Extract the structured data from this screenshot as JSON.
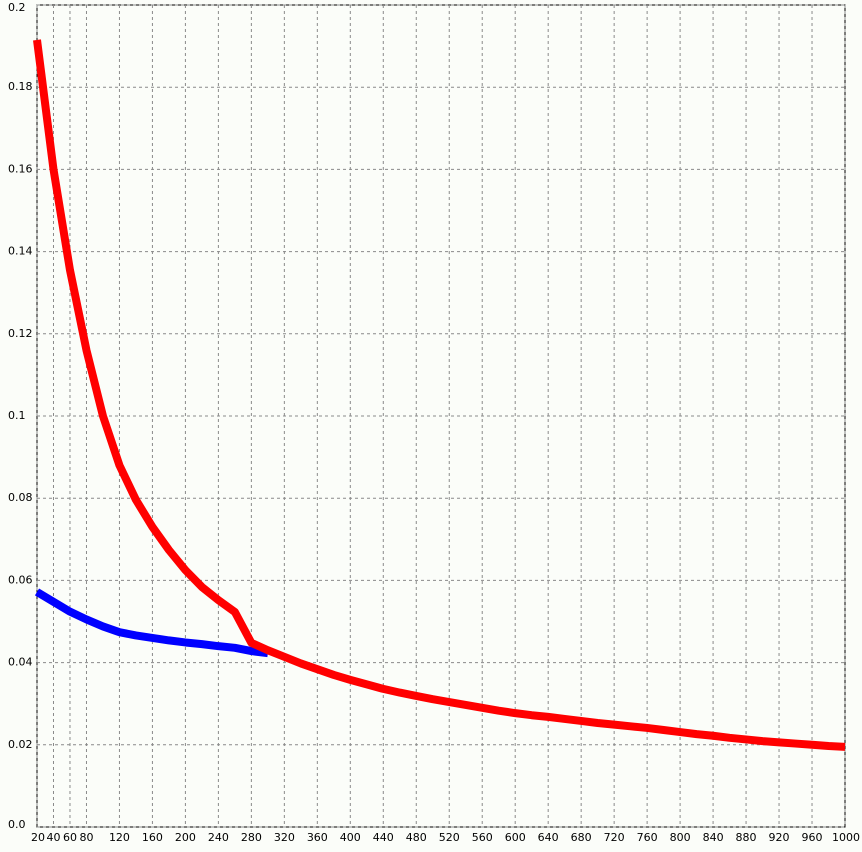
{
  "chart_data": {
    "type": "line",
    "x": [
      20,
      40,
      60,
      80,
      100,
      120,
      140,
      160,
      180,
      200,
      220,
      240,
      260,
      280,
      300,
      320,
      340,
      360,
      380,
      400,
      420,
      440,
      460,
      480,
      500,
      520,
      540,
      560,
      580,
      600,
      620,
      640,
      660,
      680,
      700,
      720,
      740,
      760,
      780,
      800,
      820,
      840,
      860,
      880,
      900,
      920,
      940,
      960,
      980,
      1000
    ],
    "series": [
      {
        "color": "#0000ff",
        "values": [
          0.0572,
          0.0548,
          0.0524,
          0.0505,
          0.0488,
          0.0474,
          0.0466,
          0.046,
          0.0454,
          0.0449,
          0.0445,
          0.044,
          0.0436,
          0.0428,
          0.0423,
          null,
          null,
          null,
          null,
          null,
          null,
          null,
          null,
          null,
          null,
          null,
          null,
          null,
          null,
          null,
          null,
          null,
          null,
          null,
          null,
          null,
          null,
          null,
          null,
          null,
          null,
          null,
          null,
          null,
          null,
          null,
          null,
          null,
          null,
          null
        ]
      },
      {
        "color": "#ff0000",
        "values": [
          0.1915,
          0.16,
          0.1355,
          0.116,
          0.1,
          0.088,
          0.0796,
          0.073,
          0.0674,
          0.0625,
          0.0584,
          0.0552,
          0.0523,
          0.0448,
          0.043,
          0.0414,
          0.0398,
          0.0384,
          0.037,
          0.0358,
          0.0347,
          0.0336,
          0.0327,
          0.0319,
          0.0311,
          0.0304,
          0.0297,
          0.029,
          0.0283,
          0.0277,
          0.0272,
          0.0268,
          0.0263,
          0.0258,
          0.0253,
          0.0249,
          0.0245,
          0.0241,
          0.0236,
          0.0231,
          0.0226,
          0.0222,
          0.0217,
          0.0213,
          0.0209,
          0.0206,
          0.0203,
          0.02,
          0.0197,
          0.0195
        ]
      }
    ],
    "xlim": [
      20,
      1000
    ],
    "xticks": [
      20,
      40,
      60,
      80,
      120,
      160,
      200,
      240,
      280,
      320,
      360,
      400,
      440,
      480,
      520,
      560,
      600,
      640,
      680,
      720,
      760,
      800,
      840,
      880,
      920,
      960,
      1000
    ],
    "ylim": [
      0,
      0.2
    ],
    "yticks": [
      {
        "value": 0,
        "label": "0.0"
      },
      0.02,
      0.04,
      0.06,
      0.08,
      0.1,
      0.12,
      0.14,
      0.16,
      0.18,
      0.2
    ],
    "grid": true
  }
}
